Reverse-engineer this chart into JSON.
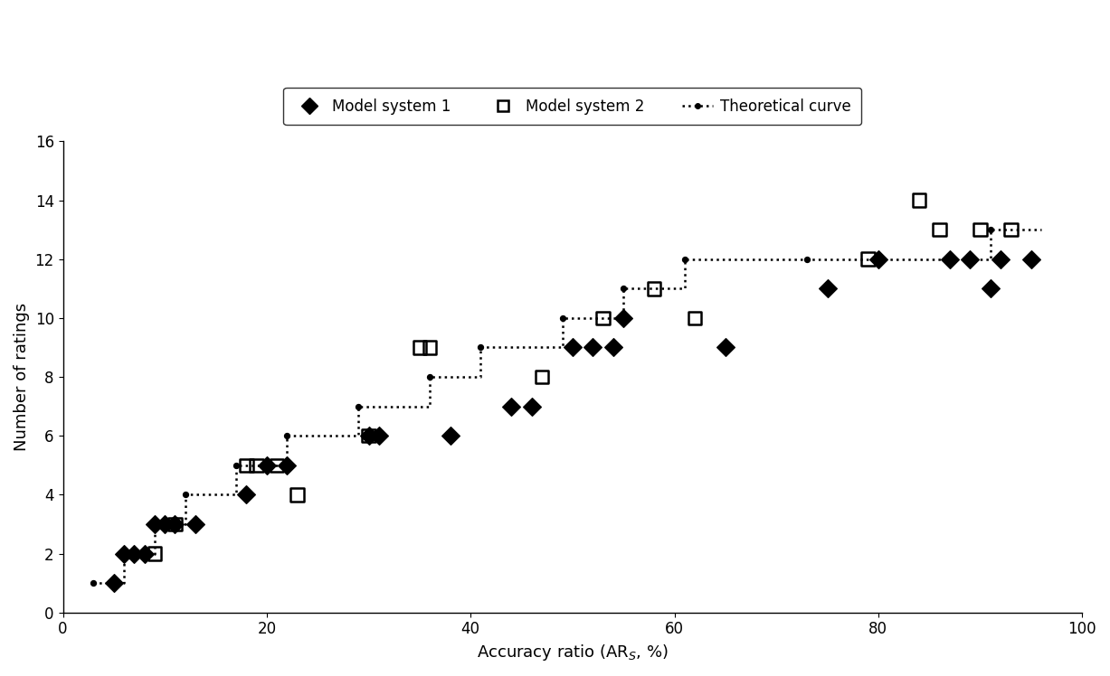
{
  "model1_x": [
    5,
    6,
    7,
    8,
    9,
    10,
    11,
    13,
    18,
    20,
    22,
    30,
    31,
    38,
    44,
    46,
    50,
    52,
    54,
    55,
    65,
    75,
    80,
    87,
    89,
    91,
    92,
    95
  ],
  "model1_y": [
    1,
    2,
    2,
    2,
    3,
    3,
    3,
    3,
    4,
    5,
    5,
    6,
    6,
    6,
    7,
    7,
    9,
    9,
    9,
    10,
    9,
    11,
    12,
    12,
    12,
    11,
    12,
    12
  ],
  "model2_x": [
    9,
    11,
    18,
    19,
    21,
    23,
    30,
    35,
    36,
    47,
    53,
    58,
    62,
    79,
    84,
    86,
    90,
    93
  ],
  "model2_y": [
    2,
    3,
    5,
    5,
    5,
    4,
    6,
    9,
    9,
    8,
    10,
    11,
    10,
    12,
    14,
    13,
    13,
    13
  ],
  "theoretical_x": [
    3,
    6,
    6,
    9,
    9,
    12,
    12,
    17,
    17,
    22,
    22,
    29,
    29,
    36,
    36,
    41,
    41,
    49,
    49,
    55,
    55,
    61,
    61,
    73,
    73,
    80,
    80,
    91,
    91,
    96
  ],
  "theoretical_y": [
    1,
    1,
    2,
    2,
    3,
    3,
    4,
    4,
    5,
    5,
    6,
    6,
    7,
    7,
    8,
    8,
    9,
    9,
    10,
    10,
    11,
    11,
    12,
    12,
    12,
    12,
    12,
    12,
    13,
    13
  ],
  "theoretical_dots_x": [
    3,
    6,
    9,
    12,
    17,
    22,
    29,
    36,
    41,
    49,
    55,
    61,
    73,
    80,
    91
  ],
  "theoretical_dots_y": [
    1,
    2,
    3,
    4,
    5,
    6,
    7,
    8,
    9,
    10,
    11,
    12,
    12,
    12,
    13
  ],
  "xlabel": "Accuracy ratio (AR$_S$, %)",
  "ylabel": "Number of ratings",
  "xlim": [
    0,
    100
  ],
  "ylim": [
    0,
    16
  ],
  "yticks": [
    0,
    2,
    4,
    6,
    8,
    10,
    12,
    14,
    16
  ],
  "xticks": [
    0,
    20,
    40,
    60,
    80,
    100
  ],
  "legend_labels": [
    "Model system 1",
    "Model system 2",
    "Theoretical curve"
  ],
  "bg_color": "#ffffff"
}
